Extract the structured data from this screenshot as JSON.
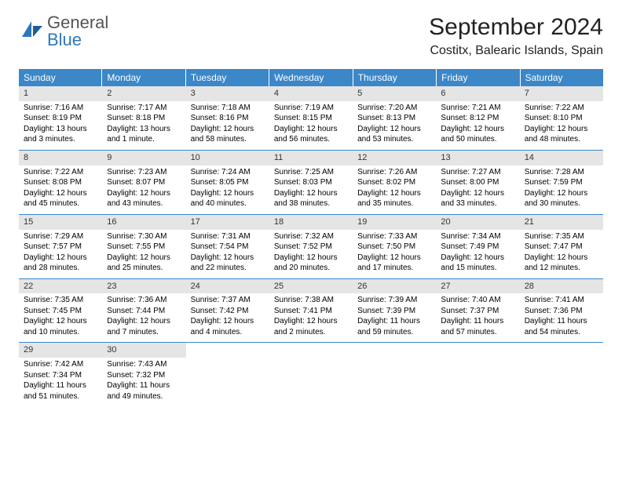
{
  "colors": {
    "header_bg": "#3b87c8",
    "header_text": "#ffffff",
    "daynum_bg": "#e5e5e5",
    "daynum_text": "#333333",
    "week_border": "#3b87c8",
    "body_text": "#000000",
    "logo_gray": "#555555",
    "logo_blue": "#2f77bb"
  },
  "logo": {
    "general": "General",
    "blue": "Blue"
  },
  "title": "September 2024",
  "location": "Costitx, Balearic Islands, Spain",
  "weekdays": [
    "Sunday",
    "Monday",
    "Tuesday",
    "Wednesday",
    "Thursday",
    "Friday",
    "Saturday"
  ],
  "weeks": [
    [
      {
        "num": "1",
        "sunrise": "Sunrise: 7:16 AM",
        "sunset": "Sunset: 8:19 PM",
        "day1": "Daylight: 13 hours",
        "day2": "and 3 minutes."
      },
      {
        "num": "2",
        "sunrise": "Sunrise: 7:17 AM",
        "sunset": "Sunset: 8:18 PM",
        "day1": "Daylight: 13 hours",
        "day2": "and 1 minute."
      },
      {
        "num": "3",
        "sunrise": "Sunrise: 7:18 AM",
        "sunset": "Sunset: 8:16 PM",
        "day1": "Daylight: 12 hours",
        "day2": "and 58 minutes."
      },
      {
        "num": "4",
        "sunrise": "Sunrise: 7:19 AM",
        "sunset": "Sunset: 8:15 PM",
        "day1": "Daylight: 12 hours",
        "day2": "and 56 minutes."
      },
      {
        "num": "5",
        "sunrise": "Sunrise: 7:20 AM",
        "sunset": "Sunset: 8:13 PM",
        "day1": "Daylight: 12 hours",
        "day2": "and 53 minutes."
      },
      {
        "num": "6",
        "sunrise": "Sunrise: 7:21 AM",
        "sunset": "Sunset: 8:12 PM",
        "day1": "Daylight: 12 hours",
        "day2": "and 50 minutes."
      },
      {
        "num": "7",
        "sunrise": "Sunrise: 7:22 AM",
        "sunset": "Sunset: 8:10 PM",
        "day1": "Daylight: 12 hours",
        "day2": "and 48 minutes."
      }
    ],
    [
      {
        "num": "8",
        "sunrise": "Sunrise: 7:22 AM",
        "sunset": "Sunset: 8:08 PM",
        "day1": "Daylight: 12 hours",
        "day2": "and 45 minutes."
      },
      {
        "num": "9",
        "sunrise": "Sunrise: 7:23 AM",
        "sunset": "Sunset: 8:07 PM",
        "day1": "Daylight: 12 hours",
        "day2": "and 43 minutes."
      },
      {
        "num": "10",
        "sunrise": "Sunrise: 7:24 AM",
        "sunset": "Sunset: 8:05 PM",
        "day1": "Daylight: 12 hours",
        "day2": "and 40 minutes."
      },
      {
        "num": "11",
        "sunrise": "Sunrise: 7:25 AM",
        "sunset": "Sunset: 8:03 PM",
        "day1": "Daylight: 12 hours",
        "day2": "and 38 minutes."
      },
      {
        "num": "12",
        "sunrise": "Sunrise: 7:26 AM",
        "sunset": "Sunset: 8:02 PM",
        "day1": "Daylight: 12 hours",
        "day2": "and 35 minutes."
      },
      {
        "num": "13",
        "sunrise": "Sunrise: 7:27 AM",
        "sunset": "Sunset: 8:00 PM",
        "day1": "Daylight: 12 hours",
        "day2": "and 33 minutes."
      },
      {
        "num": "14",
        "sunrise": "Sunrise: 7:28 AM",
        "sunset": "Sunset: 7:59 PM",
        "day1": "Daylight: 12 hours",
        "day2": "and 30 minutes."
      }
    ],
    [
      {
        "num": "15",
        "sunrise": "Sunrise: 7:29 AM",
        "sunset": "Sunset: 7:57 PM",
        "day1": "Daylight: 12 hours",
        "day2": "and 28 minutes."
      },
      {
        "num": "16",
        "sunrise": "Sunrise: 7:30 AM",
        "sunset": "Sunset: 7:55 PM",
        "day1": "Daylight: 12 hours",
        "day2": "and 25 minutes."
      },
      {
        "num": "17",
        "sunrise": "Sunrise: 7:31 AM",
        "sunset": "Sunset: 7:54 PM",
        "day1": "Daylight: 12 hours",
        "day2": "and 22 minutes."
      },
      {
        "num": "18",
        "sunrise": "Sunrise: 7:32 AM",
        "sunset": "Sunset: 7:52 PM",
        "day1": "Daylight: 12 hours",
        "day2": "and 20 minutes."
      },
      {
        "num": "19",
        "sunrise": "Sunrise: 7:33 AM",
        "sunset": "Sunset: 7:50 PM",
        "day1": "Daylight: 12 hours",
        "day2": "and 17 minutes."
      },
      {
        "num": "20",
        "sunrise": "Sunrise: 7:34 AM",
        "sunset": "Sunset: 7:49 PM",
        "day1": "Daylight: 12 hours",
        "day2": "and 15 minutes."
      },
      {
        "num": "21",
        "sunrise": "Sunrise: 7:35 AM",
        "sunset": "Sunset: 7:47 PM",
        "day1": "Daylight: 12 hours",
        "day2": "and 12 minutes."
      }
    ],
    [
      {
        "num": "22",
        "sunrise": "Sunrise: 7:35 AM",
        "sunset": "Sunset: 7:45 PM",
        "day1": "Daylight: 12 hours",
        "day2": "and 10 minutes."
      },
      {
        "num": "23",
        "sunrise": "Sunrise: 7:36 AM",
        "sunset": "Sunset: 7:44 PM",
        "day1": "Daylight: 12 hours",
        "day2": "and 7 minutes."
      },
      {
        "num": "24",
        "sunrise": "Sunrise: 7:37 AM",
        "sunset": "Sunset: 7:42 PM",
        "day1": "Daylight: 12 hours",
        "day2": "and 4 minutes."
      },
      {
        "num": "25",
        "sunrise": "Sunrise: 7:38 AM",
        "sunset": "Sunset: 7:41 PM",
        "day1": "Daylight: 12 hours",
        "day2": "and 2 minutes."
      },
      {
        "num": "26",
        "sunrise": "Sunrise: 7:39 AM",
        "sunset": "Sunset: 7:39 PM",
        "day1": "Daylight: 11 hours",
        "day2": "and 59 minutes."
      },
      {
        "num": "27",
        "sunrise": "Sunrise: 7:40 AM",
        "sunset": "Sunset: 7:37 PM",
        "day1": "Daylight: 11 hours",
        "day2": "and 57 minutes."
      },
      {
        "num": "28",
        "sunrise": "Sunrise: 7:41 AM",
        "sunset": "Sunset: 7:36 PM",
        "day1": "Daylight: 11 hours",
        "day2": "and 54 minutes."
      }
    ],
    [
      {
        "num": "29",
        "sunrise": "Sunrise: 7:42 AM",
        "sunset": "Sunset: 7:34 PM",
        "day1": "Daylight: 11 hours",
        "day2": "and 51 minutes."
      },
      {
        "num": "30",
        "sunrise": "Sunrise: 7:43 AM",
        "sunset": "Sunset: 7:32 PM",
        "day1": "Daylight: 11 hours",
        "day2": "and 49 minutes."
      },
      {
        "empty": true
      },
      {
        "empty": true
      },
      {
        "empty": true
      },
      {
        "empty": true
      },
      {
        "empty": true
      }
    ]
  ]
}
